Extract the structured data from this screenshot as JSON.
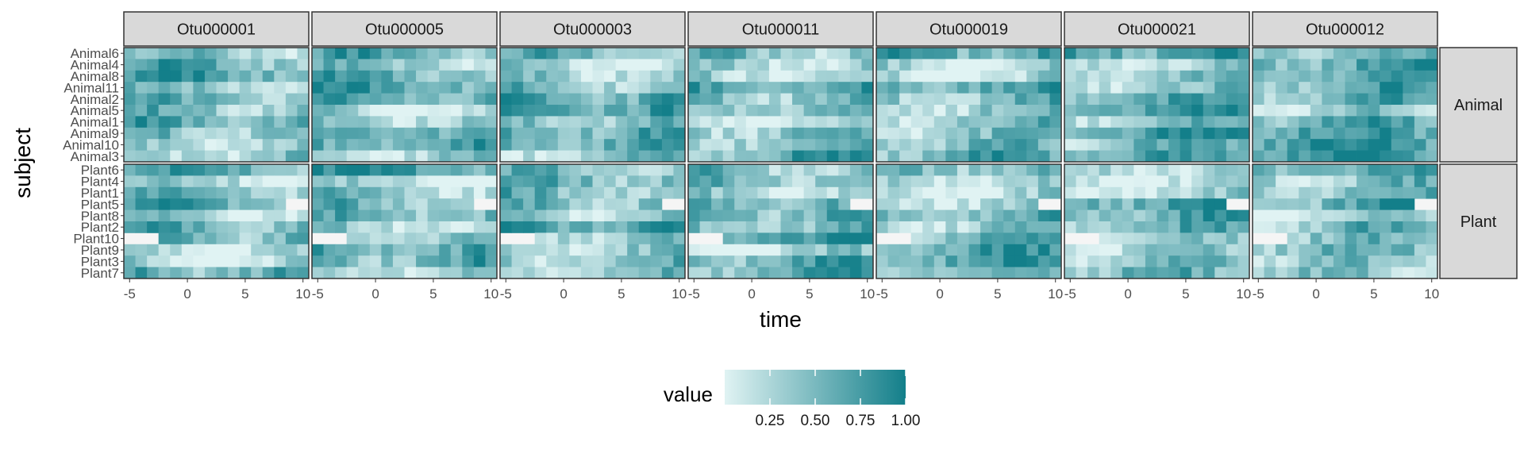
{
  "chart_data": {
    "type": "heatmap",
    "title": "",
    "xlabel": "time",
    "ylabel": "subject",
    "xlim": [
      -5,
      10
    ],
    "x_ticks": [
      -5,
      0,
      5,
      10
    ],
    "x_tick_labels": [
      "-5",
      "0",
      "5",
      "10"
    ],
    "x": [
      -5,
      -4,
      -3,
      -2,
      -1,
      0,
      1,
      2,
      3,
      4,
      5,
      6,
      7,
      8,
      9,
      10
    ],
    "columns": [
      "Otu000001",
      "Otu000005",
      "Otu000003",
      "Otu000011",
      "Otu000019",
      "Otu000021",
      "Otu000012"
    ],
    "rows": [
      {
        "name": "Animal",
        "subjects": [
          "Animal6",
          "Animal4",
          "Animal8",
          "Animal11",
          "Animal2",
          "Animal5",
          "Animal1",
          "Animal9",
          "Animal10",
          "Animal3"
        ]
      },
      {
        "name": "Plant",
        "subjects": [
          "Plant6",
          "Plant4",
          "Plant1",
          "Plant5",
          "Plant8",
          "Plant2",
          "Plant10",
          "Plant9",
          "Plant3",
          "Plant7"
        ]
      }
    ],
    "missing_time_ranges": {
      "Plant10": [
        [
          -5,
          -3
        ]
      ],
      "Plant5": [
        [
          9,
          10
        ]
      ]
    },
    "legend": {
      "title": "value",
      "ticks": [
        0.25,
        0.5,
        0.75,
        1.0
      ],
      "tick_labels": [
        "0.25",
        "0.50",
        "0.75",
        "1.00"
      ],
      "range": [
        0.0,
        1.0
      ],
      "position": "bottom",
      "low_color": "#e0f3f3",
      "high_color": "#137f8a"
    },
    "na_color": "#f5f5f5",
    "grid": false
  }
}
